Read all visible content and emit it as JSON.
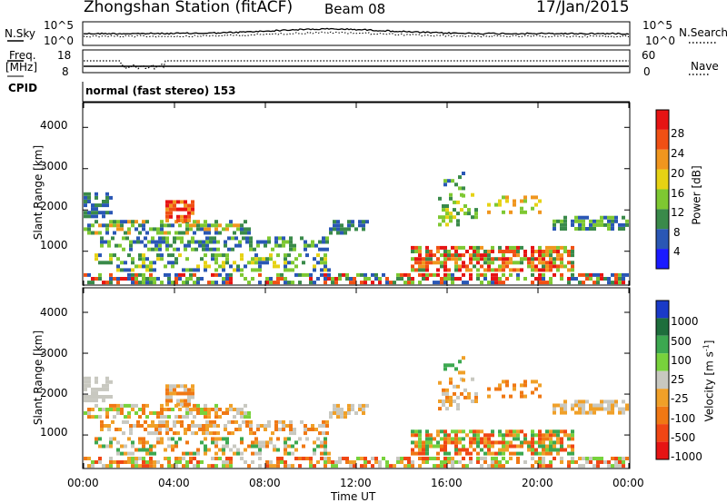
{
  "header": {
    "station": "Zhongshan Station (fitACF)",
    "beam": "Beam 08",
    "date": "17/Jan/2015"
  },
  "top_panels": {
    "nsky_label": "N.Sky",
    "nsearch_label": "N.Search",
    "nsky_ticks": [
      "10^5",
      "10^0"
    ],
    "nsearch_ticks": [
      "10^5",
      "10^0"
    ],
    "freq_label_1": "Freq.",
    "freq_label_2": "[MHz]",
    "freq_ticks": [
      "18",
      "8"
    ],
    "nave_label": "Nave",
    "nave_ticks": [
      "60",
      "0"
    ],
    "cpid_label": "CPID",
    "cpid_text": "normal (fast stereo) 153"
  },
  "chart_data": [
    {
      "type": "heatmap",
      "name": "power",
      "ylabel": "Slant Range [km]",
      "y_ticks": [
        "1000",
        "2000",
        "3000",
        "4000"
      ],
      "ylim": [
        180,
        4600
      ],
      "colorbar_label": "Power [dB]",
      "colorbar_ticks": [
        "4",
        "8",
        "12",
        "16",
        "20",
        "24",
        "28"
      ],
      "colors": [
        "#1a1aff",
        "#2a57b5",
        "#3a8a4a",
        "#7ec832",
        "#e6d214",
        "#f0961e",
        "#f05014",
        "#e61414"
      ]
    },
    {
      "type": "heatmap",
      "name": "velocity",
      "ylabel": "Slant Range [km]",
      "y_ticks": [
        "1000",
        "2000",
        "3000",
        "4000"
      ],
      "ylim": [
        180,
        4600
      ],
      "colorbar_label": "Velocity [m s",
      "colorbar_label_sup": "-1",
      "colorbar_label_end": "]",
      "colorbar_ticks": [
        "1000",
        "500",
        "100",
        "25",
        "-25",
        "-100",
        "-500",
        "-1000"
      ],
      "colors": [
        "#1a3ac8",
        "#1e6e3c",
        "#3ca850",
        "#78d23c",
        "#c8c8c0",
        "#f0a028",
        "#f07814",
        "#f04614",
        "#e61414"
      ]
    }
  ],
  "x_axis": {
    "ticks": [
      "00:00",
      "04:00",
      "08:00",
      "12:00",
      "16:00",
      "20:00",
      "00:00"
    ],
    "label": "Time UT"
  }
}
